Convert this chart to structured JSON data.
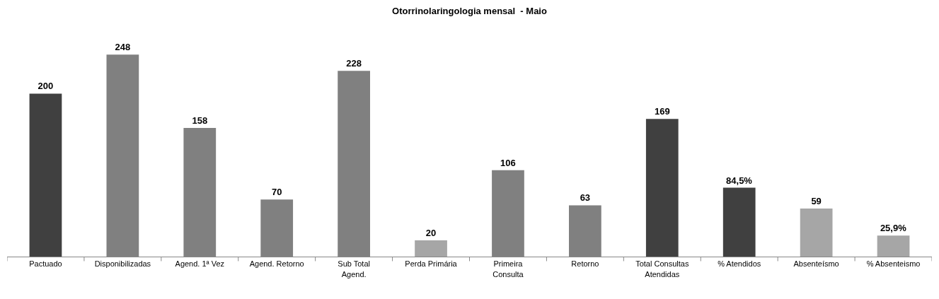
{
  "chart_data": {
    "type": "bar",
    "title": "Otorrinolaringologia mensal  - Maio",
    "categories": [
      "Pactuado",
      "Disponibilizadas",
      "Agend. 1ª Vez",
      "Agend. Retorno",
      "Sub Total Agend.",
      "Perda Primária",
      "Primeira Consulta",
      "Retorno",
      "Total Consultas Atendidas",
      "% Atendidos",
      "Absenteísmo",
      "% Absenteismo"
    ],
    "values": [
      200,
      248,
      158,
      70,
      228,
      20,
      106,
      63,
      169,
      84.5,
      59,
      25.9
    ],
    "colors": [
      "#404040",
      "#808080",
      "#808080",
      "#808080",
      "#808080",
      "#a6a6a6",
      "#808080",
      "#808080",
      "#404040",
      "#404040",
      "#a6a6a6",
      "#a6a6a6"
    ],
    "value_labels": [
      "200",
      "248",
      "158",
      "70",
      "228",
      "20",
      "106",
      "63",
      "169",
      "84,5%",
      "59",
      "25,9%"
    ]
  }
}
